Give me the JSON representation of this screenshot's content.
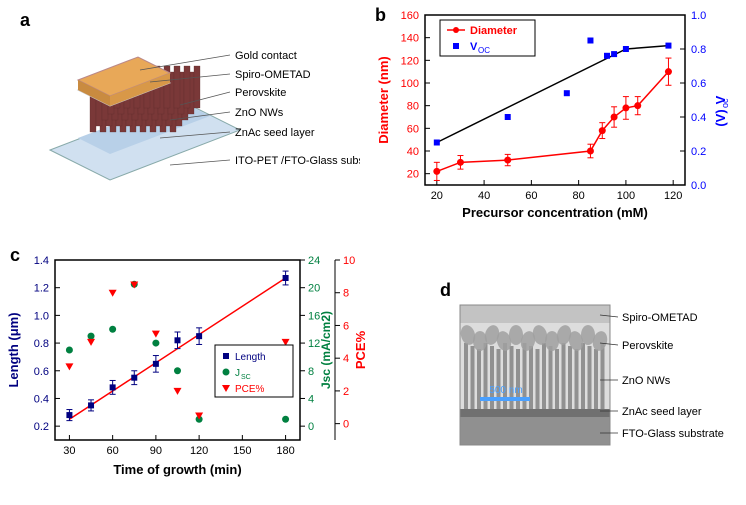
{
  "panel_a": {
    "label": "a",
    "layers": [
      {
        "text": "Gold contact",
        "color": "#e8a858"
      },
      {
        "text": "Spiro-OMETAD",
        "color": "#f5f0d0"
      },
      {
        "text": "Perovskite",
        "color": "#7a3838"
      },
      {
        "text": "ZnO NWs",
        "color": "#c8a0a0"
      },
      {
        "text": "ZnAc seed layer",
        "color": "#b8d0e8"
      },
      {
        "text": "ITO-PET /FTO-Glass substrate",
        "color": "#d0e0f0"
      }
    ],
    "label_fontsize": 11
  },
  "panel_b": {
    "label": "b",
    "type": "scatter-line",
    "xlabel": "Precursor concentration (mM)",
    "ylabel_left": "Diameter (nm)",
    "ylabel_right": "Voc (V)",
    "xlim": [
      15,
      125
    ],
    "xtick": [
      20,
      40,
      60,
      80,
      100,
      120
    ],
    "ylim_left": [
      10,
      160
    ],
    "ytick_left": [
      20,
      40,
      60,
      80,
      100,
      120,
      140,
      160
    ],
    "ylim_right": [
      0,
      1.0
    ],
    "ytick_right": [
      0.0,
      0.2,
      0.4,
      0.6,
      0.8,
      1.0
    ],
    "diameter": {
      "x": [
        20,
        30,
        50,
        85,
        90,
        95,
        100,
        105,
        118
      ],
      "y": [
        22,
        30,
        32,
        40,
        58,
        70,
        78,
        80,
        110
      ],
      "err": [
        8,
        6,
        5,
        6,
        7,
        9,
        10,
        8,
        12
      ],
      "color": "#ff0000",
      "marker": "circle"
    },
    "voc": {
      "x": [
        20,
        50,
        75,
        85,
        92,
        95,
        100,
        118
      ],
      "y": [
        0.25,
        0.4,
        0.54,
        0.85,
        0.76,
        0.77,
        0.8,
        0.82
      ],
      "color": "#0000ff",
      "line_color": "#000000",
      "marker": "square"
    },
    "legend": [
      "Diameter",
      "Voc"
    ],
    "background": "#ffffff",
    "axis_fontsize": 13,
    "tick_fontsize": 11
  },
  "panel_c": {
    "label": "c",
    "type": "scatter-line",
    "xlabel": "Time of growth (min)",
    "ylabel_left": "Length (μm)",
    "ylabel_mid": "Jsc (mA/cm²)",
    "ylabel_right": "PCE%",
    "xlim": [
      20,
      190
    ],
    "xtick": [
      30,
      60,
      90,
      120,
      150,
      180
    ],
    "ylim_left": [
      0.1,
      1.4
    ],
    "ytick_left": [
      0.2,
      0.4,
      0.6,
      0.8,
      1.0,
      1.2,
      1.4
    ],
    "ylim_mid": [
      -2,
      24
    ],
    "ytick_mid": [
      0,
      4,
      8,
      12,
      16,
      20,
      24
    ],
    "ylim_right": [
      -1,
      10
    ],
    "ytick_right": [
      0,
      2,
      4,
      6,
      8,
      10
    ],
    "length": {
      "x": [
        30,
        45,
        60,
        75,
        90,
        105,
        120,
        180
      ],
      "y": [
        0.28,
        0.35,
        0.48,
        0.55,
        0.65,
        0.82,
        0.85,
        1.27
      ],
      "err": [
        0.04,
        0.04,
        0.05,
        0.05,
        0.06,
        0.06,
        0.06,
        0.05
      ],
      "color": "#000080",
      "marker": "square"
    },
    "jsc": {
      "x": [
        30,
        45,
        60,
        75,
        90,
        105,
        120,
        180
      ],
      "y": [
        11,
        13,
        14,
        20.5,
        12,
        8,
        1,
        1
      ],
      "color": "#008040",
      "marker": "circle"
    },
    "pce": {
      "x": [
        30,
        45,
        60,
        75,
        90,
        105,
        120,
        180
      ],
      "y": [
        3.5,
        5,
        8,
        8.5,
        5.5,
        2,
        0.5,
        5
      ],
      "color": "#ff0000",
      "marker": "triangle-down"
    },
    "fit_line_color": "#ff0000",
    "legend": [
      "Length",
      "Jsc",
      "PCE%"
    ],
    "background": "#ffffff"
  },
  "panel_d": {
    "label": "d",
    "labels": [
      "Spiro-OMETAD",
      "Perovskite",
      "ZnO NWs",
      "ZnAc seed layer",
      "FTO-Glass substrate"
    ],
    "scalebar": "500 nm",
    "label_fontsize": 11,
    "bg_shades": [
      "#b8b8b8",
      "#a0a0a0",
      "#888888",
      "#707070",
      "#909090"
    ]
  }
}
